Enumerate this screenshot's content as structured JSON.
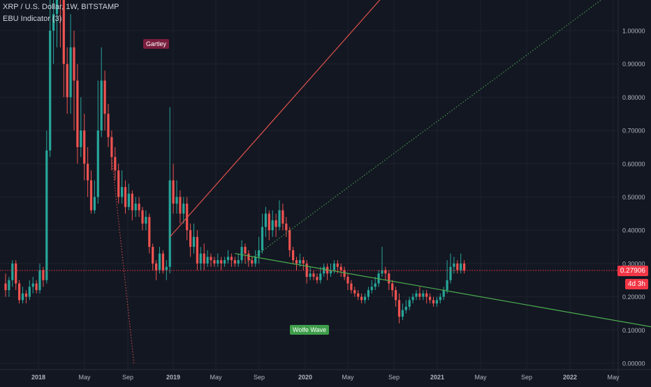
{
  "header": {
    "symbol_line": "XRP / U.S. Dollar, 1W, BITSTAMP",
    "indicator_line": "EBU Indicator (3)"
  },
  "annotations": {
    "gartley": "Gartley",
    "wolfe_wave": "Wolfe Wave"
  },
  "price_labels": {
    "last": "0.27906",
    "countdown": "4d 3h"
  },
  "colors": {
    "background": "#131722",
    "grid": "#1e222d",
    "up": "#26a69a",
    "down": "#ef5350",
    "text": "#b2b5be",
    "last_price": "#f23645",
    "gartley_line": "#e0524c",
    "wolfe_line": "#4caf50"
  },
  "chart_data": {
    "type": "candlestick",
    "title": "XRP / U.S. Dollar, 1W, BITSTAMP",
    "x_ticks": [
      "2018",
      "May",
      "Sep",
      "2019",
      "May",
      "Sep",
      "2020",
      "May",
      "Sep",
      "2021",
      "May",
      "Sep",
      "2022",
      "May"
    ],
    "y_ticks": [
      "1.00000",
      "0.90000",
      "0.80000",
      "0.70000",
      "0.60000",
      "0.50000",
      "0.40000",
      "0.30000",
      "0.20000",
      "0.10000",
      "0.00000"
    ],
    "ylim": [
      0.0,
      1.1
    ],
    "grid": true,
    "last_price": 0.27906,
    "series_weekly_ohlc_approx": [
      [
        0.24,
        0.22,
        0.27,
        0.2
      ],
      [
        0.22,
        0.25,
        0.26,
        0.2
      ],
      [
        0.25,
        0.3,
        0.31,
        0.23
      ],
      [
        0.3,
        0.24,
        0.31,
        0.22
      ],
      [
        0.24,
        0.19,
        0.25,
        0.18
      ],
      [
        0.19,
        0.21,
        0.23,
        0.18
      ],
      [
        0.21,
        0.2,
        0.22,
        0.18
      ],
      [
        0.2,
        0.23,
        0.25,
        0.19
      ],
      [
        0.23,
        0.24,
        0.26,
        0.21
      ],
      [
        0.24,
        0.22,
        0.25,
        0.21
      ],
      [
        0.22,
        0.28,
        0.3,
        0.21
      ],
      [
        0.28,
        0.25,
        0.29,
        0.23
      ],
      [
        0.25,
        0.64,
        0.7,
        0.24
      ],
      [
        0.64,
        1.0,
        1.1,
        0.62
      ],
      [
        1.0,
        1.05,
        1.1,
        0.9
      ],
      [
        1.05,
        1.3,
        1.4,
        0.95
      ],
      [
        1.3,
        1.1,
        1.25,
        0.95
      ],
      [
        1.1,
        0.9,
        1.05,
        0.8
      ],
      [
        0.9,
        0.8,
        0.95,
        0.75
      ],
      [
        0.8,
        0.95,
        1.05,
        0.75
      ],
      [
        0.95,
        0.85,
        1.0,
        0.7
      ],
      [
        0.85,
        0.65,
        0.9,
        0.6
      ],
      [
        0.65,
        0.7,
        0.8,
        0.62
      ],
      [
        0.7,
        0.6,
        0.75,
        0.55
      ],
      [
        0.6,
        0.55,
        0.65,
        0.5
      ],
      [
        0.55,
        0.46,
        0.58,
        0.45
      ],
      [
        0.46,
        0.5,
        0.55,
        0.45
      ],
      [
        0.5,
        0.7,
        0.85,
        0.48
      ],
      [
        0.7,
        0.85,
        0.95,
        0.68
      ],
      [
        0.85,
        0.75,
        0.88,
        0.7
      ],
      [
        0.75,
        0.68,
        0.78,
        0.65
      ],
      [
        0.68,
        0.62,
        0.7,
        0.58
      ],
      [
        0.62,
        0.58,
        0.65,
        0.55
      ],
      [
        0.58,
        0.5,
        0.6,
        0.48
      ],
      [
        0.5,
        0.53,
        0.58,
        0.48
      ],
      [
        0.53,
        0.47,
        0.55,
        0.45
      ],
      [
        0.47,
        0.51,
        0.54,
        0.46
      ],
      [
        0.51,
        0.46,
        0.52,
        0.43
      ],
      [
        0.46,
        0.48,
        0.5,
        0.44
      ],
      [
        0.48,
        0.46,
        0.5,
        0.44
      ],
      [
        0.46,
        0.42,
        0.47,
        0.4
      ],
      [
        0.42,
        0.44,
        0.46,
        0.4
      ],
      [
        0.44,
        0.35,
        0.45,
        0.33
      ],
      [
        0.35,
        0.3,
        0.36,
        0.28
      ],
      [
        0.3,
        0.28,
        0.31,
        0.25
      ],
      [
        0.28,
        0.33,
        0.35,
        0.27
      ],
      [
        0.33,
        0.28,
        0.34,
        0.27
      ],
      [
        0.28,
        0.29,
        0.31,
        0.25
      ],
      [
        0.29,
        0.55,
        0.77,
        0.27
      ],
      [
        0.55,
        0.48,
        0.6,
        0.45
      ],
      [
        0.48,
        0.5,
        0.55,
        0.45
      ],
      [
        0.5,
        0.45,
        0.52,
        0.42
      ],
      [
        0.45,
        0.48,
        0.5,
        0.42
      ],
      [
        0.48,
        0.4,
        0.5,
        0.37
      ],
      [
        0.4,
        0.35,
        0.42,
        0.32
      ],
      [
        0.35,
        0.38,
        0.42,
        0.33
      ],
      [
        0.38,
        0.3,
        0.4,
        0.28
      ],
      [
        0.3,
        0.33,
        0.35,
        0.28
      ],
      [
        0.33,
        0.3,
        0.36,
        0.28
      ],
      [
        0.3,
        0.32,
        0.34,
        0.29
      ],
      [
        0.32,
        0.31,
        0.33,
        0.29
      ],
      [
        0.31,
        0.3,
        0.32,
        0.29
      ],
      [
        0.3,
        0.31,
        0.33,
        0.29
      ],
      [
        0.31,
        0.3,
        0.32,
        0.28
      ],
      [
        0.3,
        0.31,
        0.32,
        0.29
      ],
      [
        0.31,
        0.32,
        0.34,
        0.3
      ],
      [
        0.32,
        0.31,
        0.33,
        0.29
      ],
      [
        0.31,
        0.3,
        0.32,
        0.29
      ],
      [
        0.3,
        0.31,
        0.33,
        0.29
      ],
      [
        0.31,
        0.35,
        0.37,
        0.3
      ],
      [
        0.35,
        0.33,
        0.36,
        0.3
      ],
      [
        0.33,
        0.31,
        0.34,
        0.29
      ],
      [
        0.31,
        0.3,
        0.32,
        0.29
      ],
      [
        0.3,
        0.32,
        0.34,
        0.29
      ],
      [
        0.32,
        0.34,
        0.38,
        0.3
      ],
      [
        0.34,
        0.41,
        0.45,
        0.33
      ],
      [
        0.41,
        0.45,
        0.47,
        0.38
      ],
      [
        0.45,
        0.4,
        0.46,
        0.37
      ],
      [
        0.4,
        0.43,
        0.46,
        0.38
      ],
      [
        0.43,
        0.41,
        0.45,
        0.38
      ],
      [
        0.41,
        0.46,
        0.49,
        0.4
      ],
      [
        0.46,
        0.42,
        0.48,
        0.4
      ],
      [
        0.42,
        0.4,
        0.44,
        0.38
      ],
      [
        0.4,
        0.34,
        0.41,
        0.32
      ],
      [
        0.34,
        0.31,
        0.35,
        0.3
      ],
      [
        0.31,
        0.3,
        0.32,
        0.28
      ],
      [
        0.3,
        0.31,
        0.33,
        0.29
      ],
      [
        0.31,
        0.3,
        0.32,
        0.28
      ],
      [
        0.3,
        0.26,
        0.31,
        0.24
      ],
      [
        0.26,
        0.27,
        0.29,
        0.25
      ],
      [
        0.27,
        0.26,
        0.28,
        0.25
      ],
      [
        0.26,
        0.25,
        0.27,
        0.24
      ],
      [
        0.25,
        0.27,
        0.29,
        0.24
      ],
      [
        0.27,
        0.29,
        0.3,
        0.26
      ],
      [
        0.29,
        0.27,
        0.3,
        0.25
      ],
      [
        0.27,
        0.28,
        0.3,
        0.26
      ],
      [
        0.28,
        0.3,
        0.31,
        0.27
      ],
      [
        0.3,
        0.29,
        0.31,
        0.27
      ],
      [
        0.29,
        0.28,
        0.3,
        0.26
      ],
      [
        0.28,
        0.26,
        0.29,
        0.25
      ],
      [
        0.26,
        0.24,
        0.27,
        0.22
      ],
      [
        0.24,
        0.22,
        0.25,
        0.21
      ],
      [
        0.22,
        0.21,
        0.23,
        0.2
      ],
      [
        0.21,
        0.2,
        0.22,
        0.19
      ],
      [
        0.2,
        0.19,
        0.21,
        0.18
      ],
      [
        0.19,
        0.2,
        0.21,
        0.18
      ],
      [
        0.2,
        0.22,
        0.23,
        0.19
      ],
      [
        0.22,
        0.23,
        0.25,
        0.21
      ],
      [
        0.23,
        0.24,
        0.26,
        0.22
      ],
      [
        0.24,
        0.27,
        0.28,
        0.23
      ],
      [
        0.27,
        0.28,
        0.35,
        0.26
      ],
      [
        0.28,
        0.27,
        0.29,
        0.25
      ],
      [
        0.27,
        0.24,
        0.28,
        0.22
      ],
      [
        0.24,
        0.22,
        0.25,
        0.2
      ],
      [
        0.22,
        0.19,
        0.23,
        0.17
      ],
      [
        0.19,
        0.14,
        0.21,
        0.12
      ],
      [
        0.14,
        0.16,
        0.18,
        0.13
      ],
      [
        0.16,
        0.17,
        0.19,
        0.15
      ],
      [
        0.17,
        0.19,
        0.2,
        0.16
      ],
      [
        0.19,
        0.2,
        0.21,
        0.18
      ],
      [
        0.2,
        0.21,
        0.22,
        0.19
      ],
      [
        0.21,
        0.2,
        0.23,
        0.19
      ],
      [
        0.2,
        0.21,
        0.22,
        0.19
      ],
      [
        0.21,
        0.2,
        0.22,
        0.18
      ],
      [
        0.2,
        0.19,
        0.21,
        0.18
      ],
      [
        0.19,
        0.18,
        0.2,
        0.17
      ],
      [
        0.18,
        0.19,
        0.2,
        0.17
      ],
      [
        0.19,
        0.2,
        0.21,
        0.18
      ],
      [
        0.2,
        0.22,
        0.23,
        0.19
      ],
      [
        0.22,
        0.25,
        0.31,
        0.21
      ],
      [
        0.25,
        0.29,
        0.33,
        0.24
      ],
      [
        0.29,
        0.3,
        0.32,
        0.27
      ],
      [
        0.3,
        0.28,
        0.31,
        0.27
      ],
      [
        0.28,
        0.3,
        0.33,
        0.27
      ],
      [
        0.3,
        0.279,
        0.31,
        0.27
      ]
    ],
    "drawings": [
      {
        "name": "gartley-line",
        "from": [
          48.0,
          0.38
        ],
        "to": [
          110.0,
          1.1
        ]
      },
      {
        "name": "gartley-dotted-down",
        "from": [
          31.0,
          0.62
        ],
        "to": [
          37.5,
          0.0
        ],
        "style": "dotted"
      },
      {
        "name": "wolfe-upper-dotted",
        "from": [
          70.0,
          0.3
        ],
        "to": [
          175.0,
          1.1
        ],
        "style": "dotted"
      },
      {
        "name": "wolfe-lower-line",
        "from": [
          67.0,
          0.33
        ],
        "to": [
          194.0,
          0.1
        ]
      }
    ]
  }
}
